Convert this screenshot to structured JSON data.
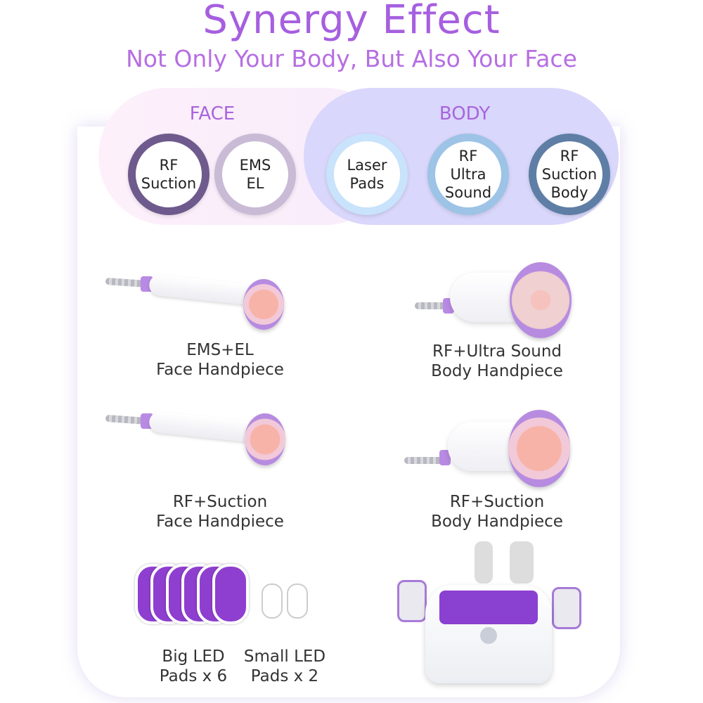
{
  "header": {
    "title": "Synergy Effect",
    "subtitle": "Not Only Your Body, But Also Your Face"
  },
  "sections": {
    "face": "FACE",
    "body": "BODY"
  },
  "circles": [
    {
      "label": "RF\nSuction",
      "color": "#6e5a8c"
    },
    {
      "label": "EMS\nEL",
      "color": "#c9bad6"
    },
    {
      "label": "Laser\nPads",
      "color": "#c8e3fb"
    },
    {
      "label": "RF\nUltra\nSound",
      "color": "#9dc3e6"
    },
    {
      "label": "RF\nSuction\nBody",
      "color": "#5e7ea5"
    }
  ],
  "products": [
    {
      "line1": "EMS+EL",
      "line2": "Face Handpiece"
    },
    {
      "line1": "RF+Ultra Sound",
      "line2": "Body Handpiece"
    },
    {
      "line1": "RF+Suction",
      "line2": "Face Handpiece"
    },
    {
      "line1": "RF+Suction",
      "line2": "Body Handpiece"
    },
    {
      "line1": "Big LED",
      "line2": "Pads x 6"
    },
    {
      "line1": "Small LED",
      "line2": "Pads x 2"
    }
  ]
}
